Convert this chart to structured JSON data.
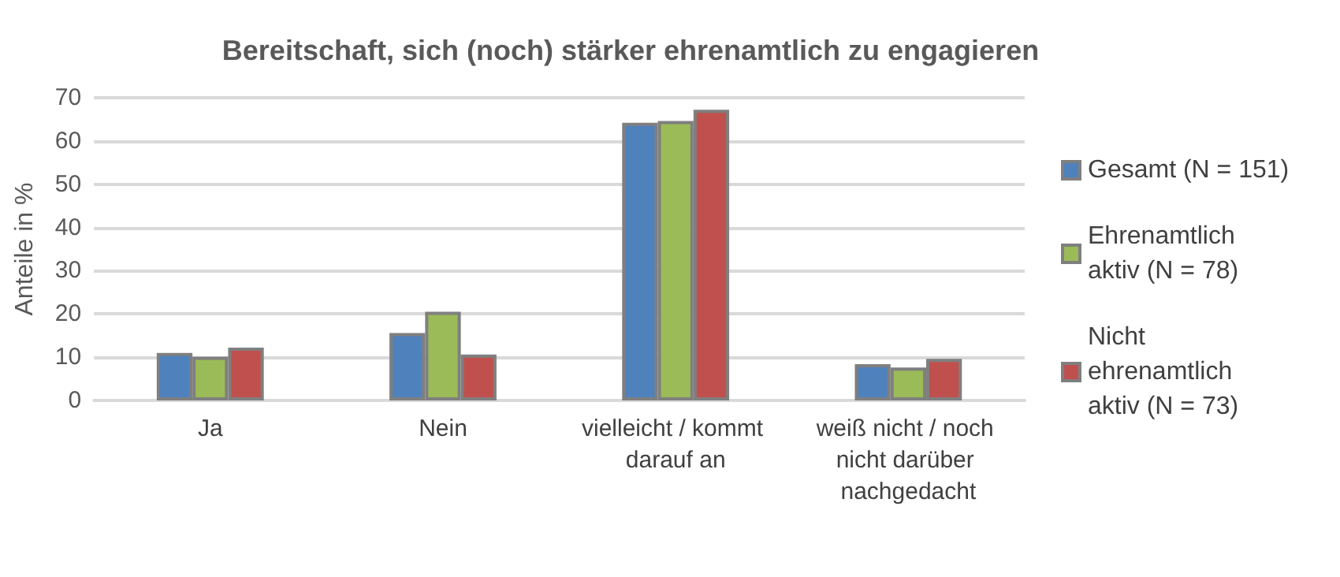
{
  "chart_data": {
    "type": "bar",
    "title": "Bereitschaft, sich (noch) stärker ehrenamtlich zu engagieren",
    "ylabel": "Anteile in %",
    "categories": [
      "Ja",
      "Nein",
      "vielleicht / kommt darauf an",
      "weiß nicht / noch nicht darüber nachgedacht"
    ],
    "series": [
      {
        "name": "Gesamt (N = 151)",
        "color": "#4f81bd",
        "values": [
          11.0,
          15.6,
          64.2,
          8.4
        ]
      },
      {
        "name": "Ehrenamtlich aktiv (N = 78)",
        "color": "#9bbb59",
        "values": [
          10.1,
          20.5,
          64.6,
          7.6
        ]
      },
      {
        "name": "Nicht ehrenamtlich aktiv (N = 73)",
        "color": "#c0504d",
        "values": [
          12.2,
          10.6,
          67.2,
          9.6
        ]
      }
    ],
    "ylim": [
      0,
      70
    ],
    "yticks": [
      0,
      10,
      20,
      30,
      40,
      50,
      60,
      70
    ],
    "grid": "y",
    "legend": "right"
  }
}
